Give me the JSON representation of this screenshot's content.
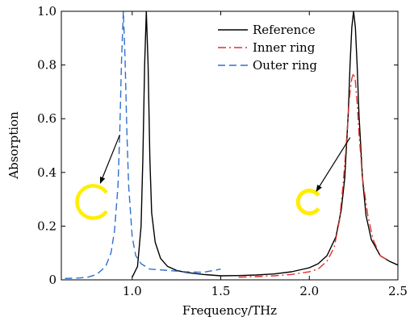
{
  "chart_data": {
    "type": "line",
    "xlabel": "Frequency/THz",
    "ylabel": "Absorption",
    "xlim": [
      0.6,
      2.5
    ],
    "ylim": [
      0.0,
      1.0
    ],
    "x_ticks": [
      1.0,
      1.5,
      2.0,
      2.5
    ],
    "x_tick_labels": [
      "1.0",
      "1.5",
      "2.0",
      "2.5"
    ],
    "y_ticks": [
      0.0,
      0.2,
      0.4,
      0.6,
      0.8,
      1.0
    ],
    "y_tick_labels": [
      "0",
      "0.2",
      "0.4",
      "0.6",
      "0.8",
      "1.0"
    ],
    "grid": false,
    "legend_position": "top-right",
    "series": [
      {
        "name": "Reference",
        "color": "#000000",
        "dash": "solid",
        "x": [
          1.5,
          1.6,
          1.7,
          1.8,
          1.9,
          2.0,
          2.05,
          2.1,
          2.15,
          2.18,
          2.2,
          2.22,
          2.23,
          2.24,
          2.25,
          2.26,
          2.27,
          2.28,
          2.3,
          2.32,
          2.35,
          2.4,
          2.45,
          2.5
        ],
        "y": [
          0.015,
          0.016,
          0.018,
          0.022,
          0.03,
          0.045,
          0.06,
          0.09,
          0.16,
          0.26,
          0.38,
          0.62,
          0.8,
          0.94,
          1.0,
          0.94,
          0.8,
          0.62,
          0.38,
          0.24,
          0.15,
          0.09,
          0.07,
          0.055
        ],
        "x2": [
          1.0,
          1.03,
          1.05,
          1.06,
          1.07,
          1.08,
          1.09,
          1.1,
          1.11,
          1.13,
          1.16,
          1.2,
          1.25,
          1.3,
          1.4,
          1.5
        ],
        "y2": [
          0.01,
          0.05,
          0.2,
          0.45,
          0.8,
          1.0,
          0.8,
          0.45,
          0.25,
          0.14,
          0.08,
          0.05,
          0.035,
          0.028,
          0.02,
          0.015
        ]
      },
      {
        "name": "Inner ring",
        "color": "#e0302a",
        "dash": "dashdot",
        "x": [
          1.6,
          1.7,
          1.8,
          1.9,
          2.0,
          2.05,
          2.1,
          2.14,
          2.17,
          2.19,
          2.21,
          2.22,
          2.23,
          2.24,
          2.25,
          2.26,
          2.27,
          2.28,
          2.3,
          2.33,
          2.36,
          2.4,
          2.45
        ],
        "y": [
          0.01,
          0.012,
          0.015,
          0.02,
          0.03,
          0.04,
          0.07,
          0.12,
          0.22,
          0.35,
          0.52,
          0.62,
          0.7,
          0.75,
          0.77,
          0.74,
          0.66,
          0.55,
          0.38,
          0.24,
          0.15,
          0.09,
          0.07
        ]
      },
      {
        "name": "Outer ring",
        "color": "#2f6fd0",
        "dash": "dashed",
        "x": [
          0.62,
          0.7,
          0.75,
          0.8,
          0.85,
          0.88,
          0.9,
          0.92,
          0.93,
          0.94,
          0.95,
          0.96,
          0.97,
          0.98,
          1.0,
          1.02,
          1.05,
          1.1,
          1.2,
          1.3,
          1.4,
          1.5
        ],
        "y": [
          0.005,
          0.007,
          0.01,
          0.02,
          0.05,
          0.1,
          0.18,
          0.35,
          0.55,
          0.82,
          1.0,
          0.82,
          0.55,
          0.35,
          0.16,
          0.09,
          0.06,
          0.04,
          0.035,
          0.03,
          0.028,
          0.04
        ]
      }
    ],
    "annotations": [
      {
        "name": "outer-ring-icon",
        "shape": "ring",
        "color": "#ffee00",
        "cx": 0.78,
        "cy": 0.29,
        "arrow_from": [
          0.93,
          0.54
        ],
        "arrow_to": [
          0.82,
          0.36
        ]
      },
      {
        "name": "inner-ring-icon",
        "shape": "ring",
        "color": "#ffee00",
        "cx": 2.0,
        "cy": 0.29,
        "arrow_from": [
          2.23,
          0.53
        ],
        "arrow_to": [
          2.04,
          0.33
        ]
      }
    ]
  }
}
